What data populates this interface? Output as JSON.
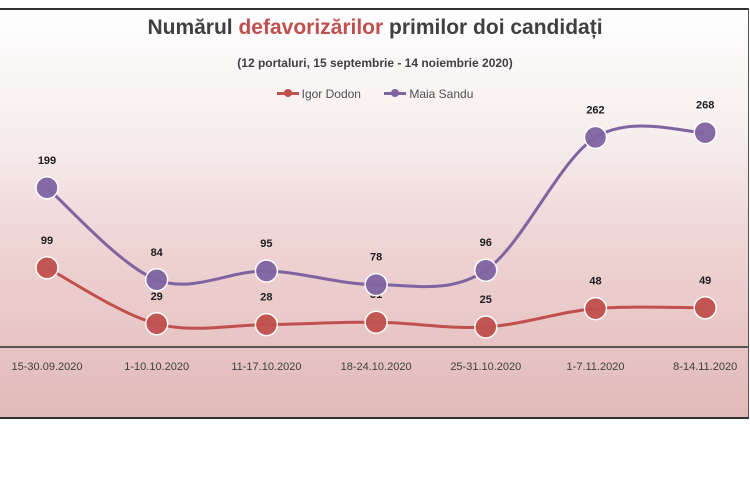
{
  "chart_data": {
    "type": "line",
    "title_parts": [
      "Numărul ",
      "defavorizărilor",
      " primilor doi candidați"
    ],
    "title": "Numărul defavorizărilor primilor doi candidați",
    "subtitle": "(12 portaluri, 15  septembrie - 14 noiembrie 2020)",
    "categories": [
      "15-30.09.2020",
      "1-10.10.2020",
      "11-17.10.2020",
      "18-24.10.2020",
      "25-31.10.2020",
      "1-7.11.2020",
      "8-14.11.2020"
    ],
    "series": [
      {
        "name": "Igor Dodon",
        "color": "#c0504d",
        "values": [
          99,
          29,
          28,
          31,
          25,
          48,
          49
        ]
      },
      {
        "name": "Maia Sandu",
        "color": "#8064a2",
        "values": [
          199,
          84,
          95,
          78,
          96,
          262,
          268
        ]
      }
    ],
    "xlabel": "",
    "ylabel": "",
    "ylim": [
      0,
      300
    ],
    "grid": false,
    "legend": "top-center"
  }
}
